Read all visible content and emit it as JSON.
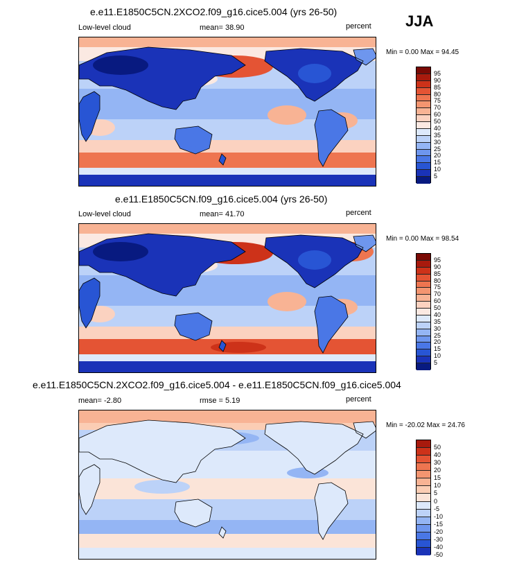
{
  "season": "JJA",
  "colors": {
    "abs_scale": [
      "#081a80",
      "#1a33b8",
      "#2855d4",
      "#4a77e6",
      "#6e96ee",
      "#94b5f4",
      "#bcd2f8",
      "#dde9fb",
      "#fbe9e2",
      "#fbd2c0",
      "#f8b394",
      "#f49570",
      "#ee7550",
      "#e45434",
      "#cd3219",
      "#a81a0d",
      "#7a0a05"
    ],
    "diff_scale": [
      "#081a80",
      "#1a33b8",
      "#2855d4",
      "#4a77e6",
      "#6e96ee",
      "#94b5f4",
      "#bcd2f8",
      "#dde9fb",
      "#fbe4d8",
      "#fbcdb4",
      "#f8b394",
      "#f49570",
      "#ee7550",
      "#e45434",
      "#cd3219",
      "#a81a0d",
      "#7a0a05"
    ]
  },
  "panels": [
    {
      "title": "e.e11.E1850C5CN.2XCO2.f09_g16.cice5.004 (yrs 26-50)",
      "left_label": "Low-level cloud",
      "center_label": "mean=  38.90",
      "right_label": "percent",
      "minmax": "Min =   0.00 Max =  94.45",
      "colorbar_labels": [
        "95",
        "90",
        "85",
        "80",
        "75",
        "70",
        "60",
        "50",
        "40",
        "35",
        "30",
        "25",
        "20",
        "15",
        "10",
        "5"
      ]
    },
    {
      "title": "e.e11.E1850C5CN.f09_g16.cice5.004 (yrs 26-50)",
      "left_label": "Low-level cloud",
      "center_label": "mean=  41.70",
      "right_label": "percent",
      "minmax": "Min =   0.00 Max =  98.54",
      "colorbar_labels": [
        "95",
        "90",
        "85",
        "80",
        "75",
        "70",
        "60",
        "50",
        "40",
        "35",
        "30",
        "25",
        "20",
        "15",
        "10",
        "5"
      ]
    },
    {
      "title": "e.e11.E1850C5CN.2XCO2.f09_g16.cice5.004 - e.e11.E1850C5CN.f09_g16.cice5.004",
      "left_label": "mean=  -2.80",
      "center_label": "rmse =   5.19",
      "right_label": "percent",
      "minmax": "Min = -20.02 Max =  24.76",
      "colorbar_labels": [
        "50",
        "40",
        "30",
        "20",
        "15",
        "10",
        "5",
        "0",
        "-5",
        "-10",
        "-15",
        "-20",
        "-30",
        "-40",
        "-50"
      ]
    }
  ],
  "chart_data": [
    {
      "type": "heatmap",
      "title": "e.e11.E1850C5CN.2XCO2.f09_g16.cice5.004 (yrs 26-50)",
      "variable": "Low-level cloud",
      "units": "percent",
      "mean": 38.9,
      "min": 0.0,
      "max": 94.45,
      "levels": [
        5,
        10,
        15,
        20,
        25,
        30,
        35,
        40,
        50,
        60,
        70,
        75,
        80,
        85,
        90,
        95
      ]
    },
    {
      "type": "heatmap",
      "title": "e.e11.E1850C5CN.f09_g16.cice5.004 (yrs 26-50)",
      "variable": "Low-level cloud",
      "units": "percent",
      "mean": 41.7,
      "min": 0.0,
      "max": 98.54,
      "levels": [
        5,
        10,
        15,
        20,
        25,
        30,
        35,
        40,
        50,
        60,
        70,
        75,
        80,
        85,
        90,
        95
      ]
    },
    {
      "type": "heatmap",
      "title": "e.e11.E1850C5CN.2XCO2.f09_g16.cice5.004 - e.e11.E1850C5CN.f09_g16.cice5.004",
      "units": "percent",
      "mean": -2.8,
      "rmse": 5.19,
      "min": -20.02,
      "max": 24.76,
      "levels": [
        -50,
        -40,
        -30,
        -20,
        -15,
        -10,
        -5,
        0,
        5,
        10,
        15,
        20,
        30,
        40,
        50
      ]
    }
  ]
}
